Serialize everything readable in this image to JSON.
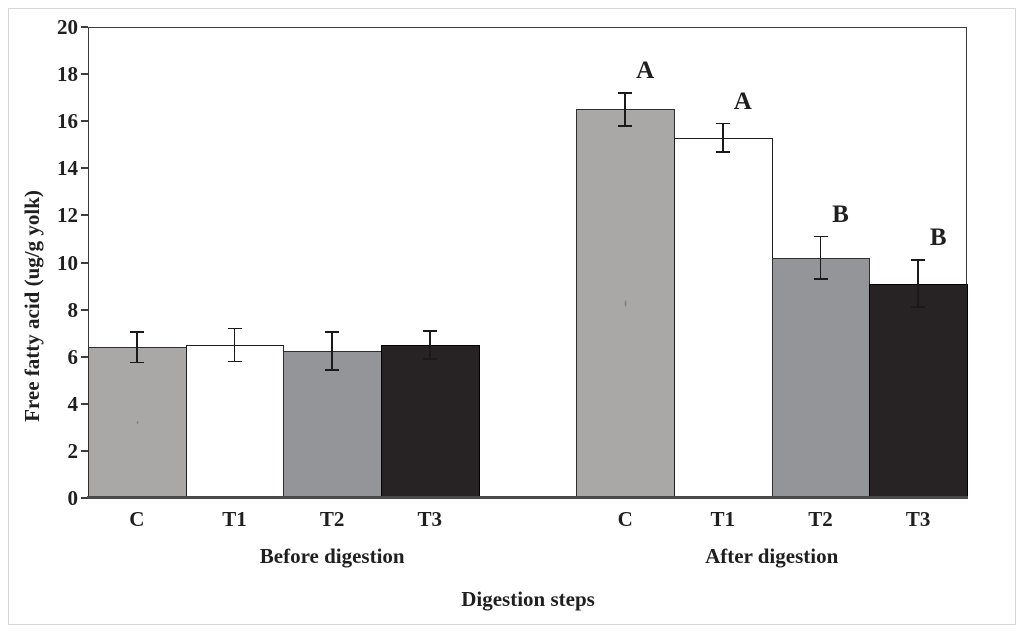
{
  "figure": {
    "background": "#ffffff",
    "chart_area_border_color": "#d6d6d6",
    "axis_color": "#3d3d3d",
    "error_bar_color": "#1a1a1a",
    "text_color": "#1f1f1f"
  },
  "chart_data": {
    "type": "bar",
    "title": "",
    "xlabel": "Digestion steps",
    "ylabel": "Free fatty acid (ug/g yolk)",
    "ylim": [
      0,
      20
    ],
    "yticks": [
      0,
      2,
      4,
      6,
      8,
      10,
      12,
      14,
      16,
      18,
      20
    ],
    "grid": false,
    "legend": "none",
    "categories": [
      "C",
      "T1",
      "T2",
      "T3"
    ],
    "groups": [
      {
        "label": "Before digestion",
        "categories": [
          "C",
          "T1",
          "T2",
          "T3"
        ],
        "values": [
          6.4,
          6.5,
          6.25,
          6.5
        ],
        "errors": [
          0.65,
          0.7,
          0.8,
          0.6
        ],
        "sig_letters": [
          "",
          "",
          "",
          ""
        ]
      },
      {
        "label": "After digestion",
        "categories": [
          "C",
          "T1",
          "T2",
          "T3"
        ],
        "values": [
          16.5,
          15.3,
          10.2,
          9.1
        ],
        "errors": [
          0.7,
          0.6,
          0.9,
          1.0
        ],
        "sig_letters": [
          "A",
          "A",
          "B",
          "B"
        ]
      }
    ],
    "bar_styles": [
      {
        "name": "C",
        "fill": "#a9a8a6",
        "pattern": "fine-dots",
        "border": "#2f2f2f"
      },
      {
        "name": "T1",
        "fill": "#ffffff",
        "pattern": "none",
        "border": "#1f1f1f"
      },
      {
        "name": "T2",
        "fill": "#939598",
        "pattern": "none",
        "border": "#2f2f2f"
      },
      {
        "name": "T3",
        "fill": "#272325",
        "pattern": "none",
        "border": "#000000"
      }
    ]
  }
}
